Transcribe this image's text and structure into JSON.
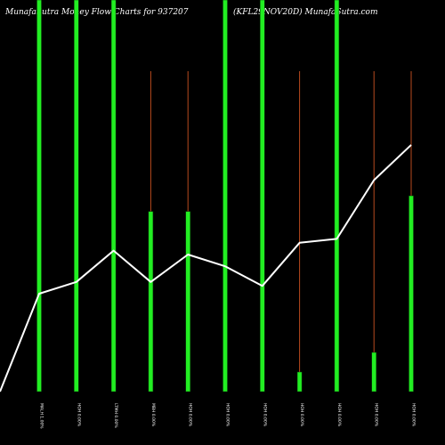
{
  "chart_data": {
    "type": "bar",
    "title": "MunafaSutra  Money Flow  Charts for 937207",
    "subtitle": "(KFL29NOV20D) MunafaSutra.com",
    "categories": [
      "MALH 1.00%",
      "HOH 0.00%",
      "LTMH 0.00%",
      "MBH 0.00%",
      "HOH 0.00%",
      "HOH 0.00%",
      "HOH 0.00%",
      "HOH 0.00%",
      "HOH 0.00%",
      "HOH 0.00%",
      "HOH 0.00%"
    ],
    "series": [
      {
        "type": "bar",
        "values": [
          100,
          100,
          100,
          46,
          46,
          100,
          100,
          5,
          100,
          10,
          50
        ],
        "range_high": [
          100,
          100,
          100,
          100,
          100,
          100,
          100,
          100,
          100,
          100,
          100
        ]
      },
      {
        "type": "line",
        "values": [
          25,
          28,
          36,
          28,
          35,
          32,
          27,
          38,
          39,
          54,
          63
        ]
      }
    ],
    "ylim": [
      0,
      100
    ],
    "grid": false,
    "colors": {
      "bar": "#22ee22",
      "wick": "#b84a1e",
      "line": "#ffffff",
      "background": "#000000"
    }
  }
}
